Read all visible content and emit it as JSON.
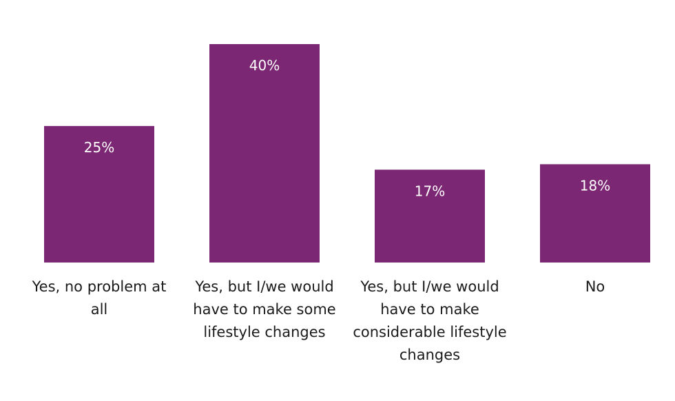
{
  "chart_data": {
    "type": "bar",
    "categories": [
      [
        "Yes, no problem at",
        "all"
      ],
      [
        "Yes, but I/we would",
        "have to make some",
        "lifestyle changes"
      ],
      [
        "Yes, but I/we would",
        "have to make",
        "considerable lifestyle",
        "changes"
      ],
      [
        "No"
      ]
    ],
    "values": [
      25,
      40,
      17,
      18
    ],
    "value_labels": [
      "25%",
      "40%",
      "17%",
      "18%"
    ],
    "title": "",
    "xlabel": "",
    "ylabel": "",
    "ylim": [
      0,
      40
    ],
    "grid": false,
    "legend": "none",
    "bar_color": "#7b2774",
    "label_color": "#ffffff",
    "text_color": "#1a1a1a"
  }
}
